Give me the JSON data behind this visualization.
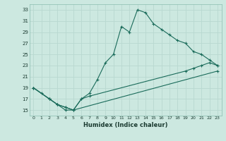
{
  "xlabel": "Humidex (Indice chaleur)",
  "bg_color": "#cce8e0",
  "line_color": "#1a6b5a",
  "grid_color": "#b8d8d0",
  "xlim": [
    -0.5,
    23.5
  ],
  "ylim": [
    14,
    34
  ],
  "xticks": [
    0,
    1,
    2,
    3,
    4,
    5,
    6,
    7,
    8,
    9,
    10,
    11,
    12,
    13,
    14,
    15,
    16,
    17,
    18,
    19,
    20,
    21,
    22,
    23
  ],
  "yticks": [
    15,
    17,
    19,
    21,
    23,
    25,
    27,
    29,
    31,
    33
  ],
  "line1_x": [
    0,
    1,
    2,
    3,
    4,
    5,
    6,
    7,
    8,
    9,
    10,
    11,
    12,
    13,
    14,
    15,
    16,
    17,
    18,
    19,
    20,
    21,
    22,
    23
  ],
  "line1_y": [
    19,
    18,
    17,
    16,
    15,
    15,
    17,
    18,
    20.5,
    23.5,
    25,
    30,
    29,
    33,
    32.5,
    30.5,
    29.5,
    28.5,
    27.5,
    27,
    25.5,
    25,
    24,
    23
  ],
  "line2_x": [
    0,
    2,
    3,
    4,
    5,
    6,
    7,
    19,
    20,
    21,
    22,
    23
  ],
  "line2_y": [
    19,
    17,
    16,
    15.5,
    15,
    17,
    17.5,
    22,
    22.5,
    23,
    23.5,
    23
  ],
  "line3_x": [
    0,
    2,
    3,
    4,
    5,
    23
  ],
  "line3_y": [
    19,
    17,
    16,
    15.5,
    15,
    22
  ]
}
